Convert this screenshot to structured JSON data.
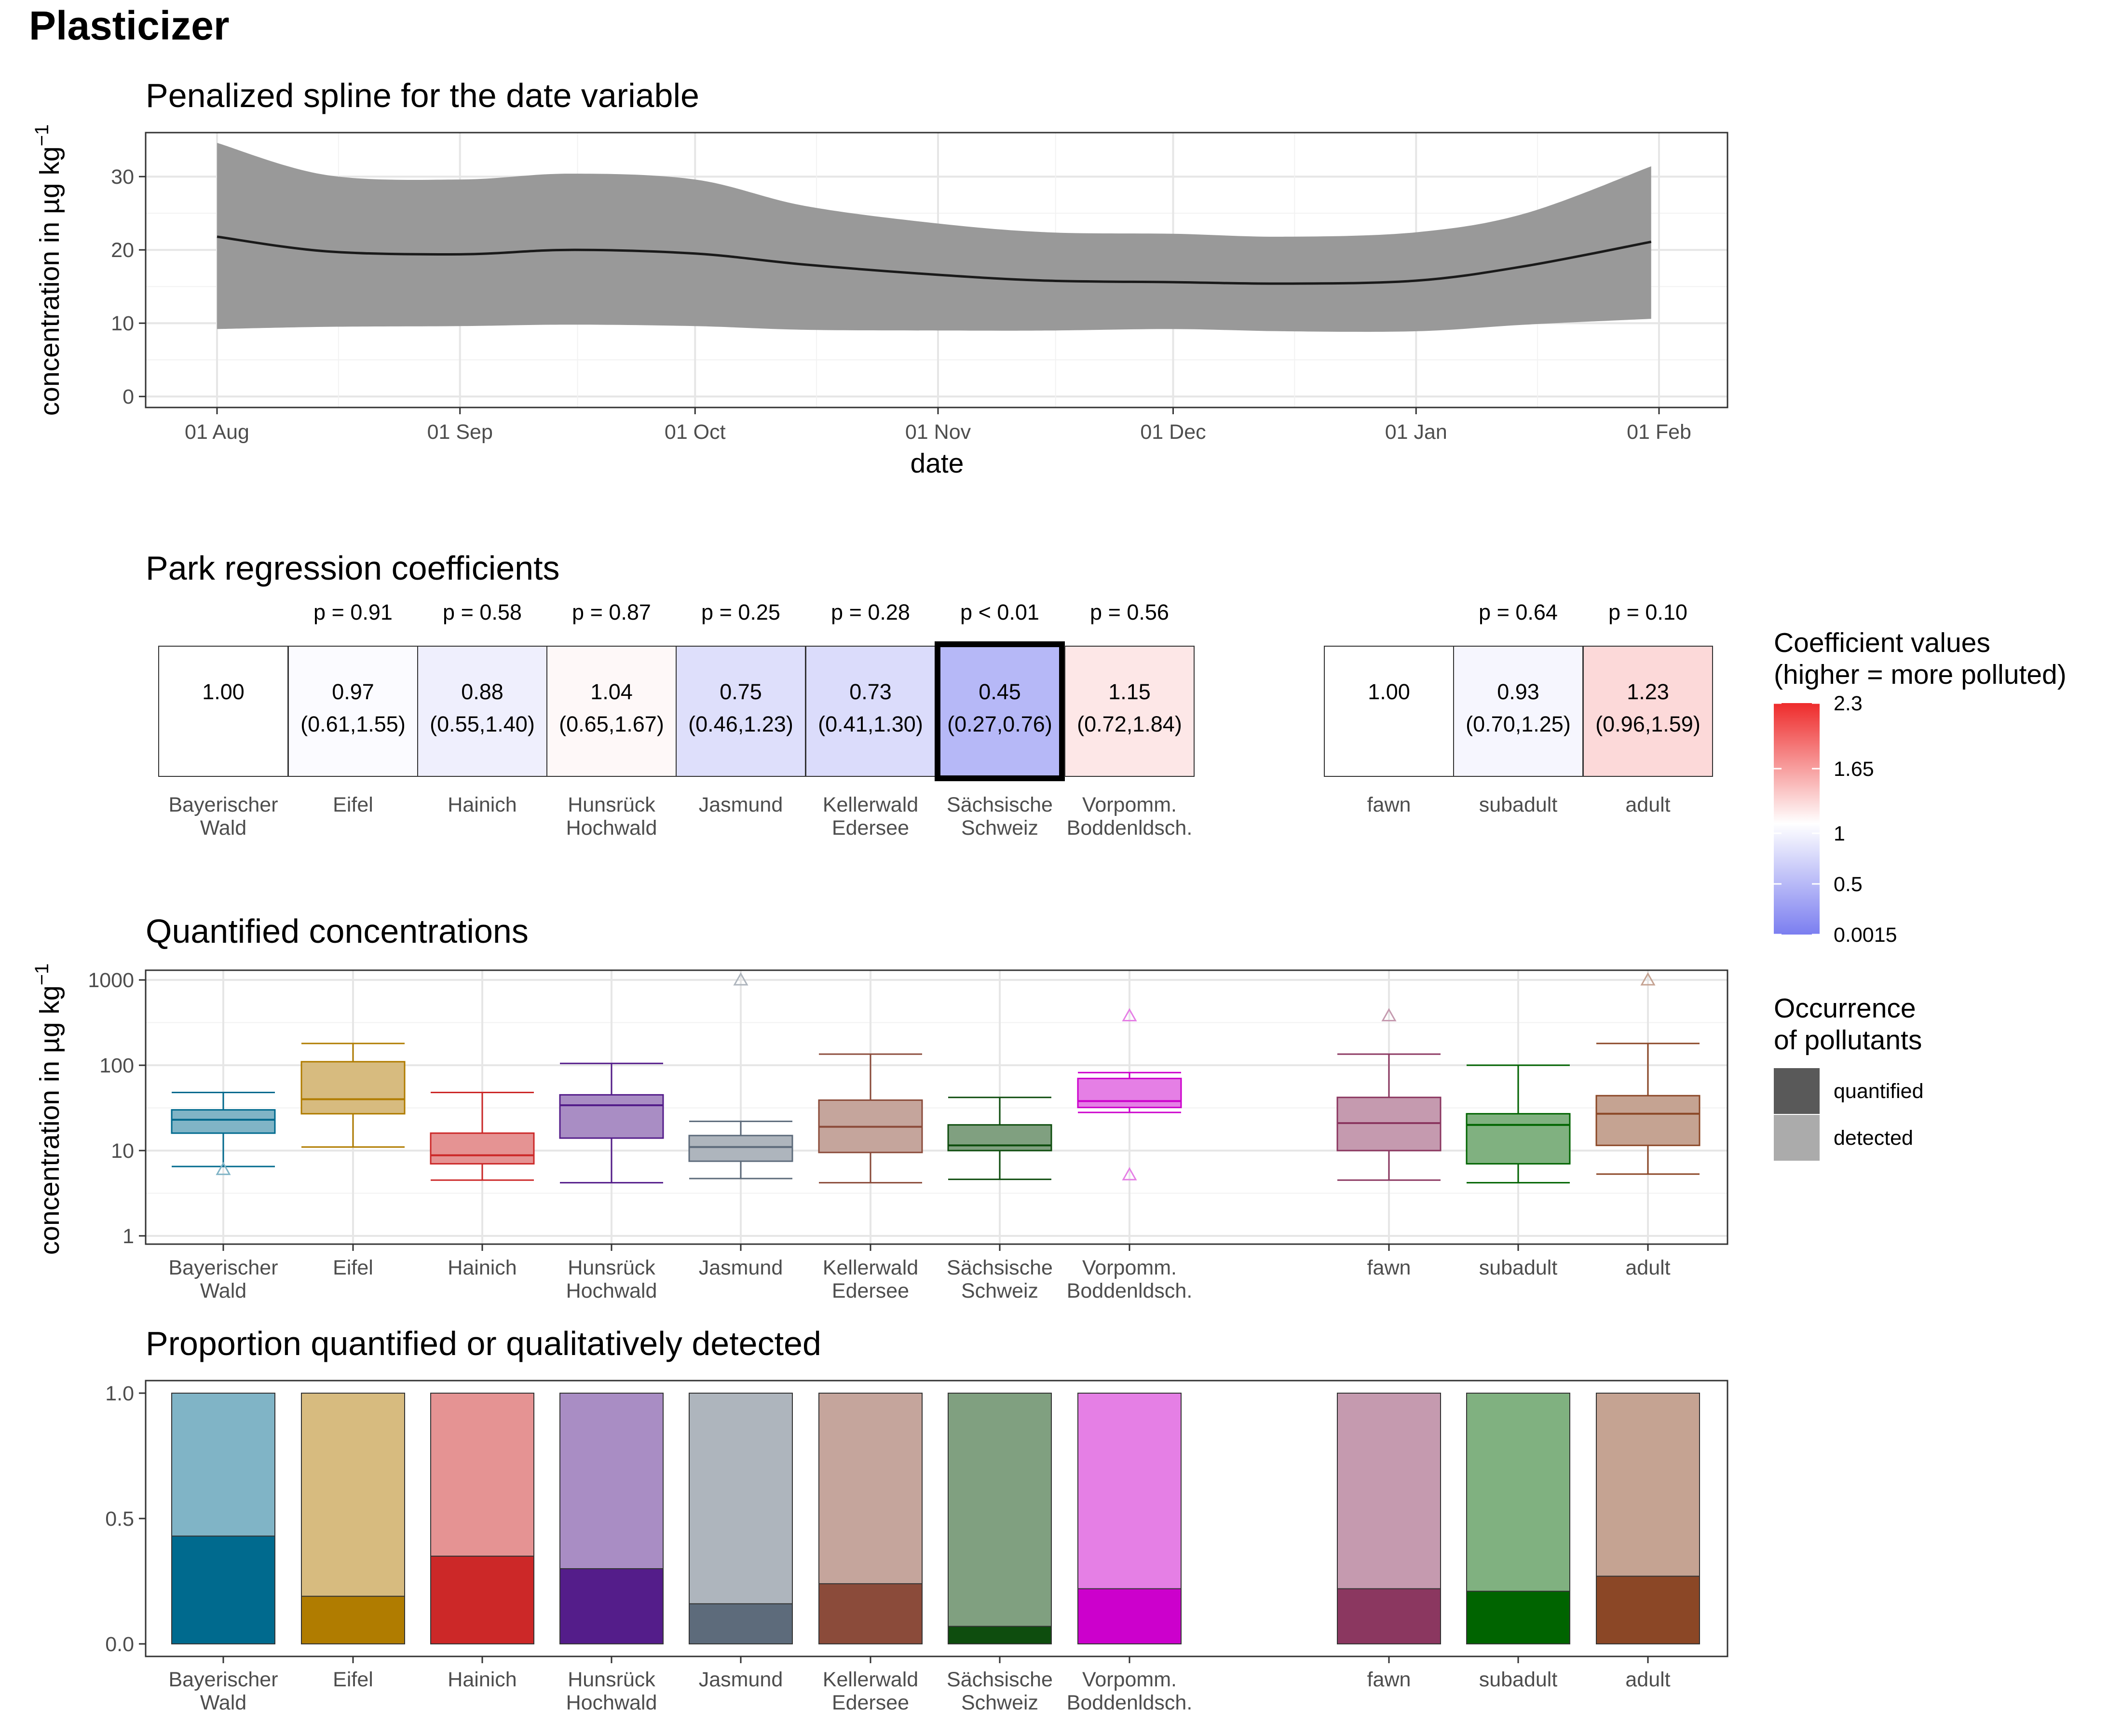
{
  "title": "Plasticizer",
  "chart_data": [
    {
      "id": "spline",
      "type": "line",
      "title": "Penalized spline for the date variable",
      "xlabel": "date",
      "ylabel": "concentration in µg kg⁻¹",
      "x_ticks": [
        "01 Aug",
        "01 Sep",
        "01 Oct",
        "01 Nov",
        "01 Dec",
        "01 Jan",
        "01 Feb"
      ],
      "y_ticks": [
        0,
        10,
        20,
        30
      ],
      "ylim": [
        -1.5,
        36
      ],
      "grid": true,
      "series": [
        {
          "x": [
            "01 Aug",
            "15 Aug",
            "01 Sep",
            "15 Sep",
            "01 Oct",
            "15 Oct",
            "01 Nov",
            "15 Nov",
            "01 Dec",
            "15 Dec",
            "01 Jan",
            "15 Jan",
            "31 Jan"
          ],
          "fit": [
            21.8,
            19.8,
            19.4,
            20.0,
            19.5,
            18.0,
            16.6,
            15.8,
            15.6,
            15.4,
            15.8,
            17.8,
            21.1
          ],
          "lower": [
            9.2,
            9.5,
            9.6,
            9.8,
            9.6,
            9.1,
            9.0,
            9.0,
            9.2,
            8.9,
            8.9,
            9.8,
            10.6
          ],
          "upper": [
            34.6,
            30.2,
            29.6,
            30.4,
            29.6,
            26.0,
            23.6,
            22.4,
            22.2,
            21.8,
            22.4,
            25.0,
            31.4
          ]
        }
      ]
    },
    {
      "id": "coefficients",
      "type": "heatmap",
      "title": "Park regression coefficients",
      "groups": [
        {
          "categories": [
            "Bayerischer\nWald",
            "Eifel",
            "Hainich",
            "Hunsrück\nHochwald",
            "Jasmund",
            "Kellerwald\nEdersee",
            "Sächsische\nSchweiz",
            "Vorpomm.\nBoddenldsch."
          ],
          "values": [
            1.0,
            0.97,
            0.88,
            1.04,
            0.75,
            0.73,
            0.45,
            1.15
          ],
          "labels": [
            "1.00",
            "0.97",
            "0.88",
            "1.04",
            "0.75",
            "0.73",
            "0.45",
            "1.15"
          ],
          "ci": [
            "",
            "(0.61,1.55)",
            "(0.55,1.40)",
            "(0.65,1.67)",
            "(0.46,1.23)",
            "(0.41,1.30)",
            "(0.27,0.76)",
            "(0.72,1.84)"
          ],
          "p": [
            "",
            "p = 0.91",
            "p = 0.58",
            "p = 0.87",
            "p = 0.25",
            "p = 0.28",
            "p < 0.01",
            "p = 0.56"
          ],
          "highlight": [
            false,
            false,
            false,
            false,
            false,
            false,
            true,
            false
          ]
        },
        {
          "categories": [
            "fawn",
            "subadult",
            "adult"
          ],
          "values": [
            1.0,
            0.93,
            1.23
          ],
          "labels": [
            "1.00",
            "0.93",
            "1.23"
          ],
          "ci": [
            "",
            "(0.70,1.25)",
            "(0.96,1.59)"
          ],
          "p": [
            "",
            "p = 0.64",
            "p = 0.10"
          ],
          "highlight": [
            false,
            false,
            false
          ]
        }
      ],
      "legend": {
        "title": "Coefficient values\n(higher = more polluted)",
        "ticks": [
          "2.3",
          "1.65",
          "1",
          "0.5",
          "0.0015"
        ],
        "tick_values": [
          2.3,
          1.65,
          1,
          0.5,
          0.0015
        ],
        "colors": {
          "high": "#ee2b2b",
          "mid": "#ffffff",
          "low": "#7b7ef0"
        },
        "placement": "right"
      }
    },
    {
      "id": "boxplots",
      "type": "box",
      "title": "Quantified concentrations",
      "ylabel": "concentration in µg kg⁻¹",
      "scale": "log10",
      "y_ticks": [
        1,
        10,
        100,
        1000
      ],
      "ylim": [
        0.8,
        1300
      ],
      "grid": true,
      "groups": [
        {
          "categories": [
            "Bayerischer\nWald",
            "Eifel",
            "Hainich",
            "Hunsrück\nHochwald",
            "Jasmund",
            "Kellerwald\nEdersee",
            "Sächsische\nSchweiz",
            "Vorpomm.\nBoddenldsch."
          ],
          "stats": [
            {
              "low": 6.5,
              "q1": 16,
              "median": 23,
              "q3": 30,
              "high": 48,
              "outliers": [
                6.0
              ]
            },
            {
              "low": 11,
              "q1": 27,
              "median": 40,
              "q3": 110,
              "high": 180,
              "outliers": []
            },
            {
              "low": 4.5,
              "q1": 7,
              "median": 8.8,
              "q3": 16,
              "high": 48,
              "outliers": []
            },
            {
              "low": 4.2,
              "q1": 14,
              "median": 34,
              "q3": 45,
              "high": 105,
              "outliers": []
            },
            {
              "low": 4.7,
              "q1": 7.5,
              "median": 11,
              "q3": 15,
              "high": 22,
              "outliers": [
                1000
              ]
            },
            {
              "low": 4.2,
              "q1": 9.5,
              "median": 19,
              "q3": 39,
              "high": 135,
              "outliers": []
            },
            {
              "low": 4.6,
              "q1": 10,
              "median": 11.5,
              "q3": 20,
              "high": 42,
              "outliers": []
            },
            {
              "low": 28,
              "q1": 32,
              "median": 38,
              "q3": 70,
              "high": 82,
              "outliers": [
                5.2,
                380
              ]
            }
          ]
        },
        {
          "categories": [
            "fawn",
            "subadult",
            "adult"
          ],
          "stats": [
            {
              "low": 4.5,
              "q1": 10,
              "median": 21,
              "q3": 42,
              "high": 135,
              "outliers": [
                380
              ]
            },
            {
              "low": 4.2,
              "q1": 7,
              "median": 20,
              "q3": 27,
              "high": 100,
              "outliers": []
            },
            {
              "low": 5.3,
              "q1": 11.5,
              "median": 27,
              "q3": 44,
              "high": 180,
              "outliers": [
                1000
              ]
            }
          ]
        }
      ],
      "legend": {
        "title": "Occurrence\nof pollutants",
        "items": [
          {
            "label": "quantified",
            "color": "#595959"
          },
          {
            "label": "detected",
            "color": "#ababab"
          }
        ],
        "placement": "right"
      }
    },
    {
      "id": "proportions",
      "type": "bar",
      "stacked": true,
      "title": "Proportion quantified or qualitatively detected",
      "y_ticks": [
        "0.0",
        "0.5",
        "1.0"
      ],
      "ylim": [
        -0.05,
        1.05
      ],
      "groups": [
        {
          "categories": [
            "Bayerischer\nWald",
            "Eifel",
            "Hainich",
            "Hunsrück\nHochwald",
            "Jasmund",
            "Kellerwald\nEdersee",
            "Sächsische\nSchweiz",
            "Vorpomm.\nBoddenldsch."
          ],
          "quantified": [
            0.43,
            0.19,
            0.35,
            0.3,
            0.16,
            0.24,
            0.07,
            0.22
          ],
          "detected": [
            1,
            1,
            1,
            1,
            1,
            1,
            1,
            1
          ]
        },
        {
          "categories": [
            "fawn",
            "subadult",
            "adult"
          ],
          "quantified": [
            0.22,
            0.21,
            0.27
          ],
          "detected": [
            1,
            1,
            1
          ]
        }
      ]
    }
  ],
  "palette": {
    "groups": [
      [
        "#006a8e",
        "#b07c00",
        "#cc2828",
        "#541d8a",
        "#5d6b7b",
        "#8b4b3a",
        "#0e4d0e",
        "#cc00cc"
      ],
      [
        "#8b3760",
        "#006400",
        "#8b4726"
      ]
    ],
    "light": [
      [
        "#80b4c6",
        "#d7bb7f",
        "#e59393",
        "#a98dc4",
        "#aeb5bd",
        "#c5a59c",
        "#80a080",
        "#e57fe5"
      ],
      [
        "#c59aaf",
        "#80b180",
        "#c5a392"
      ]
    ]
  }
}
